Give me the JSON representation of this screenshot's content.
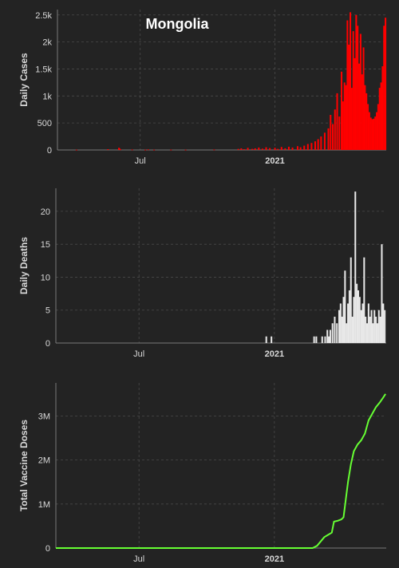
{
  "chart_data": [
    {
      "type": "bar",
      "title": "Mongolia",
      "ylabel": "Daily Cases",
      "xlabel": "",
      "color": "#ff0000",
      "x_start": "2020-03-10",
      "x_end": "2021-06-02",
      "ylim": [
        0,
        2600
      ],
      "yticks": [
        0,
        500,
        1000,
        1500,
        2000,
        2500
      ],
      "ytick_labels": [
        "0",
        "500",
        "1k",
        "1.5k",
        "2k",
        "2.5k"
      ],
      "xticks": [
        {
          "date": "2020-07-01",
          "label": "Jul",
          "bold": false
        },
        {
          "date": "2021-01-01",
          "label": "2021",
          "bold": true
        }
      ],
      "grid": true,
      "points": [
        [
          "2020-04-05",
          5
        ],
        [
          "2020-05-18",
          15
        ],
        [
          "2020-06-02",
          40
        ],
        [
          "2020-06-03",
          25
        ],
        [
          "2020-06-04",
          10
        ],
        [
          "2020-06-20",
          8
        ],
        [
          "2020-07-08",
          5
        ],
        [
          "2020-07-12",
          10
        ],
        [
          "2020-07-20",
          5
        ],
        [
          "2020-08-12",
          6
        ],
        [
          "2020-09-01",
          5
        ],
        [
          "2020-10-10",
          8
        ],
        [
          "2020-11-12",
          20
        ],
        [
          "2020-11-16",
          30
        ],
        [
          "2020-11-20",
          15
        ],
        [
          "2020-11-25",
          40
        ],
        [
          "2020-12-01",
          20
        ],
        [
          "2020-12-05",
          30
        ],
        [
          "2020-12-10",
          45
        ],
        [
          "2020-12-15",
          25
        ],
        [
          "2020-12-20",
          50
        ],
        [
          "2020-12-25",
          35
        ],
        [
          "2021-01-01",
          40
        ],
        [
          "2021-01-05",
          20
        ],
        [
          "2021-01-10",
          55
        ],
        [
          "2021-01-15",
          30
        ],
        [
          "2021-01-20",
          60
        ],
        [
          "2021-01-25",
          45
        ],
        [
          "2021-02-01",
          70
        ],
        [
          "2021-02-05",
          50
        ],
        [
          "2021-02-10",
          80
        ],
        [
          "2021-02-15",
          110
        ],
        [
          "2021-02-20",
          130
        ],
        [
          "2021-02-25",
          160
        ],
        [
          "2021-03-01",
          200
        ],
        [
          "2021-03-05",
          250
        ],
        [
          "2021-03-10",
          320
        ],
        [
          "2021-03-15",
          400
        ],
        [
          "2021-03-18",
          650
        ],
        [
          "2021-03-21",
          480
        ],
        [
          "2021-03-24",
          750
        ],
        [
          "2021-03-27",
          1050
        ],
        [
          "2021-03-30",
          620
        ],
        [
          "2021-04-02",
          1450
        ],
        [
          "2021-04-04",
          900
        ],
        [
          "2021-04-06",
          1250
        ],
        [
          "2021-04-08",
          1200
        ],
        [
          "2021-04-10",
          2400
        ],
        [
          "2021-04-12",
          1950
        ],
        [
          "2021-04-14",
          2550
        ],
        [
          "2021-04-16",
          1150
        ],
        [
          "2021-04-18",
          2200
        ],
        [
          "2021-04-20",
          1700
        ],
        [
          "2021-04-22",
          2500
        ],
        [
          "2021-04-24",
          2300
        ],
        [
          "2021-04-26",
          1600
        ],
        [
          "2021-04-28",
          2150
        ],
        [
          "2021-04-30",
          1400
        ],
        [
          "2021-05-02",
          1900
        ],
        [
          "2021-05-04",
          1200
        ],
        [
          "2021-05-06",
          1050
        ],
        [
          "2021-05-08",
          850
        ],
        [
          "2021-05-10",
          700
        ],
        [
          "2021-05-12",
          600
        ],
        [
          "2021-05-14",
          570
        ],
        [
          "2021-05-16",
          580
        ],
        [
          "2021-05-18",
          620
        ],
        [
          "2021-05-20",
          700
        ],
        [
          "2021-05-22",
          850
        ],
        [
          "2021-05-24",
          1150
        ],
        [
          "2021-05-26",
          1250
        ],
        [
          "2021-05-28",
          1550
        ],
        [
          "2021-05-30",
          2300
        ],
        [
          "2021-06-01",
          2450
        ]
      ]
    },
    {
      "type": "bar",
      "title": "",
      "ylabel": "Daily Deaths",
      "xlabel": "",
      "color": "#e8e8e8",
      "x_start": "2020-03-10",
      "x_end": "2021-06-02",
      "ylim": [
        0,
        23.5
      ],
      "yticks": [
        0,
        5,
        10,
        15,
        20
      ],
      "ytick_labels": [
        "0",
        "5",
        "10",
        "15",
        "20"
      ],
      "xticks": [
        {
          "date": "2020-07-01",
          "label": "Jul",
          "bold": false
        },
        {
          "date": "2021-01-01",
          "label": "2021",
          "bold": true
        }
      ],
      "grid": true,
      "points": [
        [
          "2020-12-21",
          1
        ],
        [
          "2020-12-28",
          1
        ],
        [
          "2021-02-24",
          1
        ],
        [
          "2021-02-27",
          1
        ],
        [
          "2021-03-07",
          1
        ],
        [
          "2021-03-11",
          1
        ],
        [
          "2021-03-14",
          2
        ],
        [
          "2021-03-16",
          1
        ],
        [
          "2021-03-18",
          2
        ],
        [
          "2021-03-21",
          3
        ],
        [
          "2021-03-24",
          4
        ],
        [
          "2021-03-27",
          3
        ],
        [
          "2021-03-30",
          5
        ],
        [
          "2021-04-01",
          6
        ],
        [
          "2021-04-03",
          4
        ],
        [
          "2021-04-05",
          7
        ],
        [
          "2021-04-07",
          11
        ],
        [
          "2021-04-09",
          3
        ],
        [
          "2021-04-11",
          6
        ],
        [
          "2021-04-13",
          8
        ],
        [
          "2021-04-15",
          13
        ],
        [
          "2021-04-17",
          4
        ],
        [
          "2021-04-19",
          7
        ],
        [
          "2021-04-21",
          23
        ],
        [
          "2021-04-23",
          9
        ],
        [
          "2021-04-25",
          8
        ],
        [
          "2021-04-27",
          7
        ],
        [
          "2021-04-29",
          5
        ],
        [
          "2021-05-01",
          6
        ],
        [
          "2021-05-03",
          13
        ],
        [
          "2021-05-05",
          4
        ],
        [
          "2021-05-07",
          3
        ],
        [
          "2021-05-09",
          6
        ],
        [
          "2021-05-11",
          4
        ],
        [
          "2021-05-13",
          5
        ],
        [
          "2021-05-15",
          3
        ],
        [
          "2021-05-17",
          5
        ],
        [
          "2021-05-19",
          4
        ],
        [
          "2021-05-21",
          3
        ],
        [
          "2021-05-23",
          5
        ],
        [
          "2021-05-25",
          4
        ],
        [
          "2021-05-27",
          15
        ],
        [
          "2021-05-29",
          6
        ],
        [
          "2021-05-31",
          5
        ]
      ]
    },
    {
      "type": "line",
      "title": "",
      "ylabel": "Total Vaccine Doses",
      "xlabel": "",
      "color": "#66ff33",
      "x_start": "2020-03-10",
      "x_end": "2021-06-02",
      "ylim": [
        0,
        3750000
      ],
      "yticks": [
        0,
        1000000,
        2000000,
        3000000
      ],
      "ytick_labels": [
        "0",
        "1M",
        "2M",
        "3M"
      ],
      "xticks": [
        {
          "date": "2020-07-01",
          "label": "Jul",
          "bold": false
        },
        {
          "date": "2021-01-01",
          "label": "2021",
          "bold": true
        }
      ],
      "grid": true,
      "points": [
        [
          "2020-03-10",
          0
        ],
        [
          "2021-02-22",
          0
        ],
        [
          "2021-02-28",
          50000
        ],
        [
          "2021-03-05",
          150000
        ],
        [
          "2021-03-10",
          250000
        ],
        [
          "2021-03-15",
          300000
        ],
        [
          "2021-03-20",
          350000
        ],
        [
          "2021-03-23",
          600000
        ],
        [
          "2021-03-28",
          620000
        ],
        [
          "2021-04-02",
          650000
        ],
        [
          "2021-04-05",
          700000
        ],
        [
          "2021-04-08",
          1100000
        ],
        [
          "2021-04-11",
          1500000
        ],
        [
          "2021-04-15",
          1900000
        ],
        [
          "2021-04-19",
          2200000
        ],
        [
          "2021-04-24",
          2350000
        ],
        [
          "2021-04-29",
          2450000
        ],
        [
          "2021-05-04",
          2600000
        ],
        [
          "2021-05-09",
          2900000
        ],
        [
          "2021-05-14",
          3050000
        ],
        [
          "2021-05-19",
          3200000
        ],
        [
          "2021-05-24",
          3300000
        ],
        [
          "2021-05-29",
          3420000
        ],
        [
          "2021-06-01",
          3500000
        ]
      ]
    }
  ]
}
